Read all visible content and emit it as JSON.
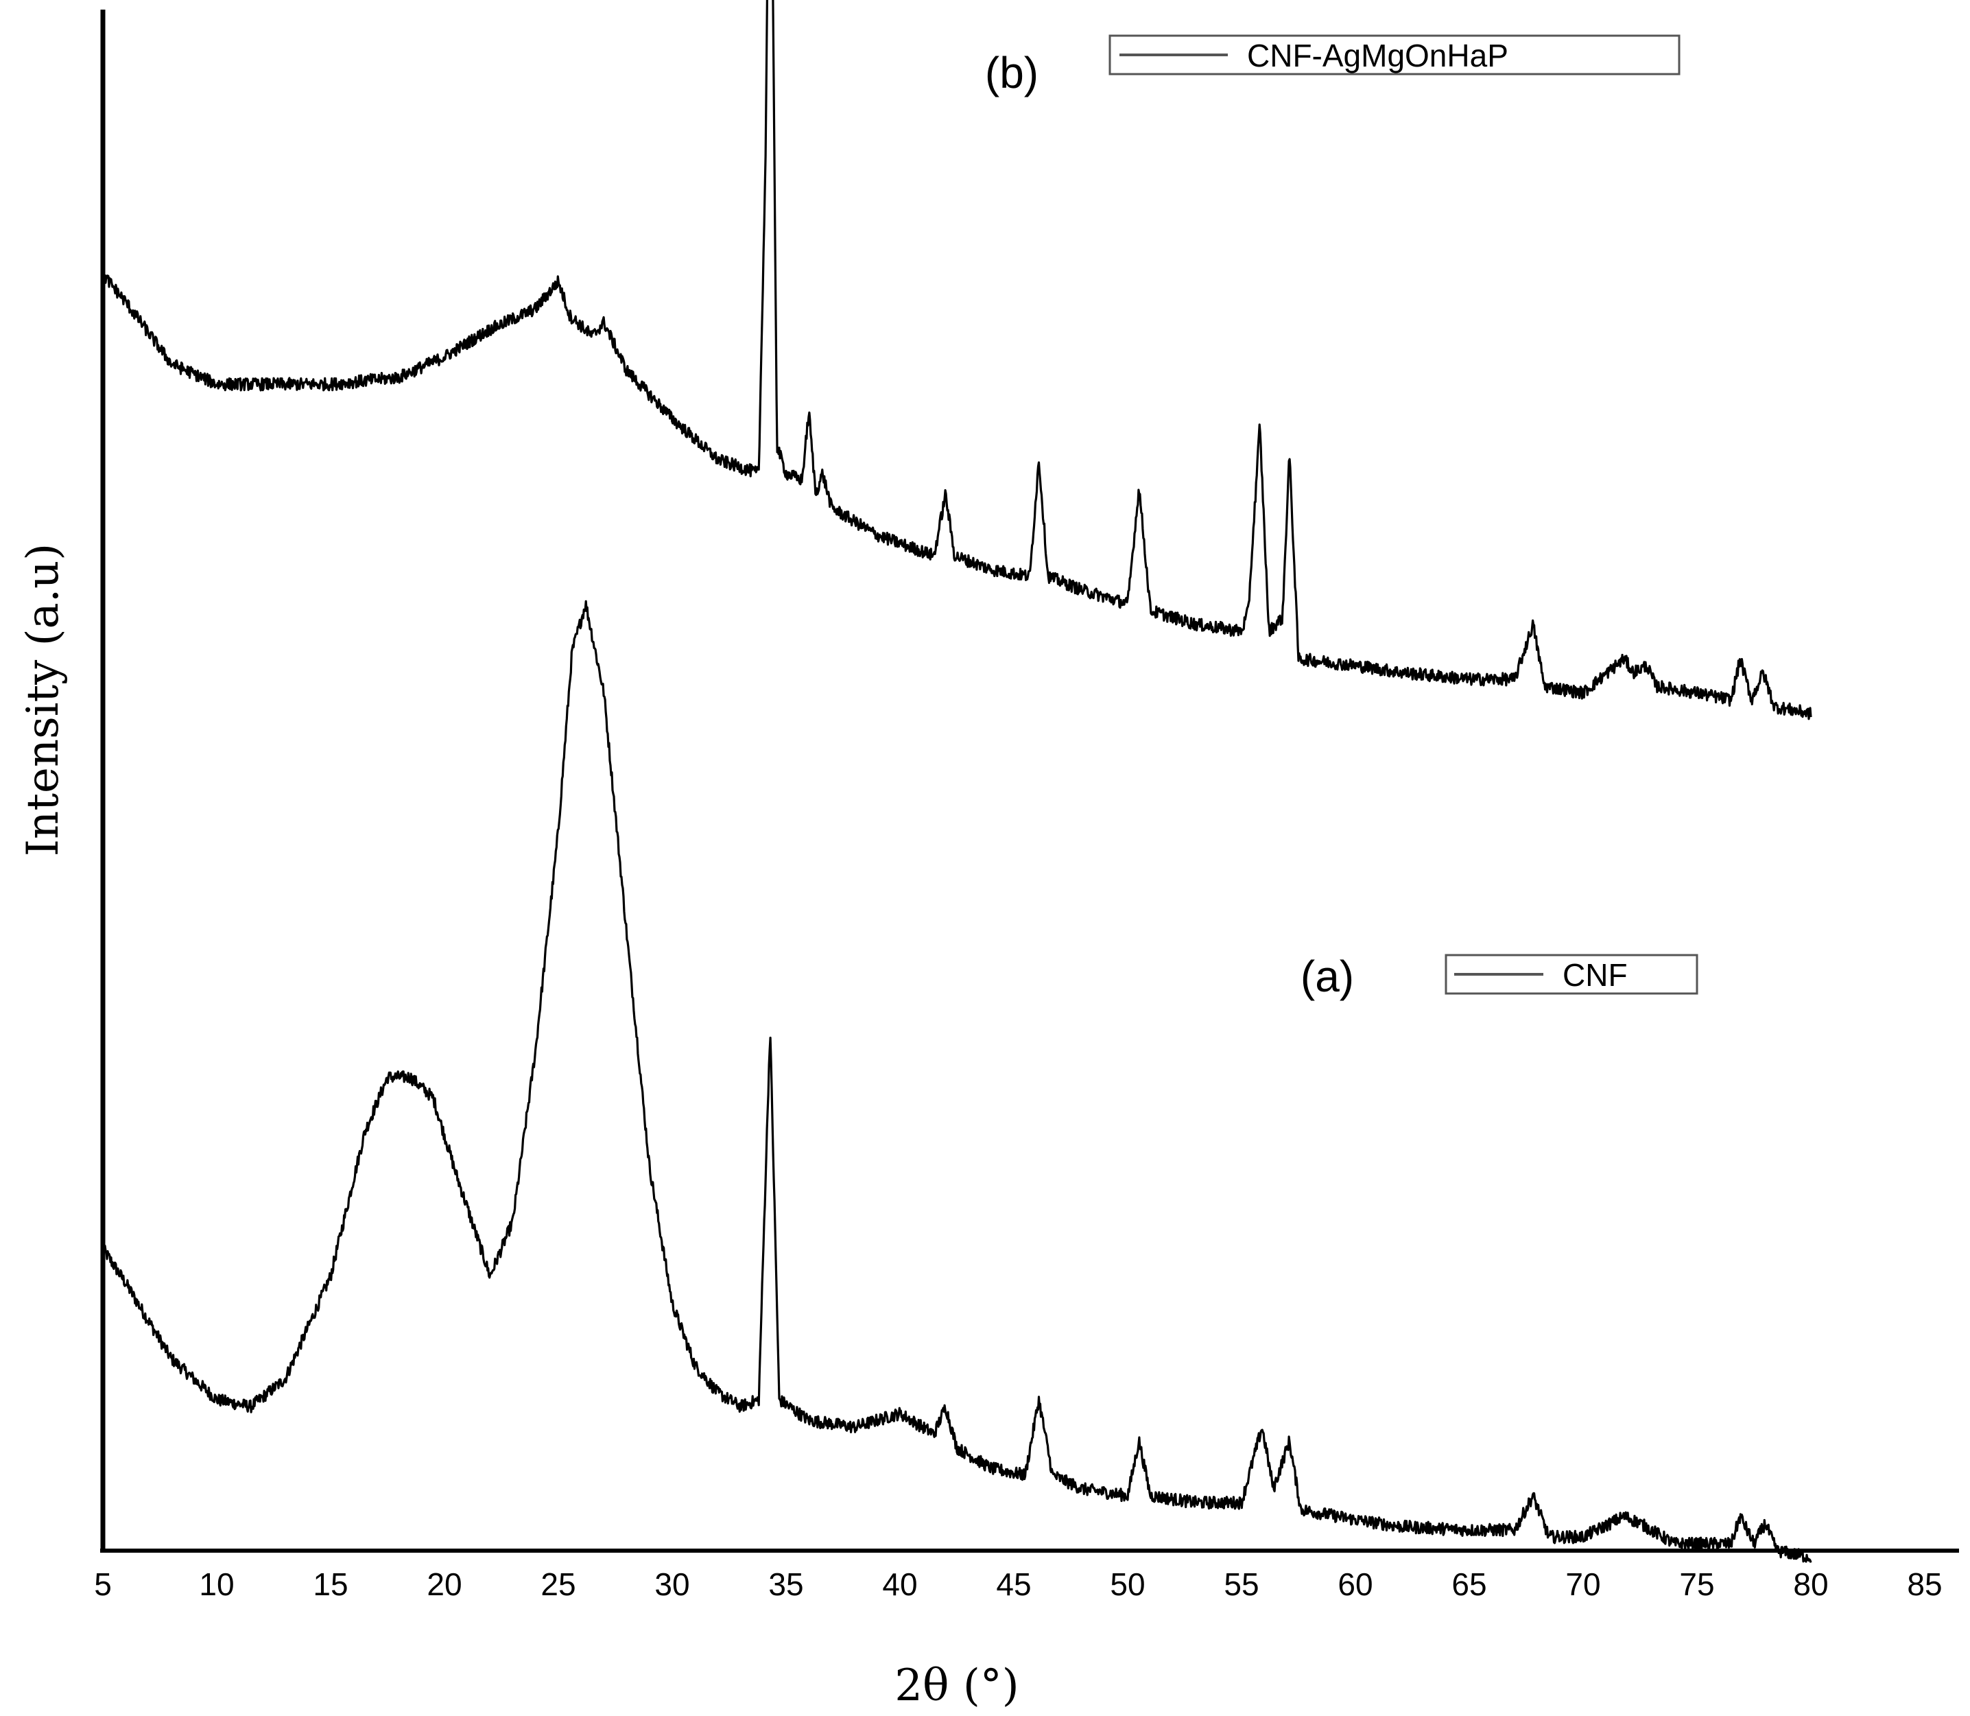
{
  "chart_data": {
    "type": "line",
    "xlabel": "2θ (°)",
    "ylabel": "Intensity (a.u)",
    "xlim": [
      5,
      85
    ],
    "x_ticks": [
      "5",
      "10",
      "15",
      "20",
      "25",
      "30",
      "35",
      "40",
      "45",
      "50",
      "55",
      "60",
      "65",
      "70",
      "75",
      "80",
      "85"
    ],
    "y_ticks": "none",
    "grid": false,
    "series": [
      {
        "name": "CNF",
        "panel_label": "(a)",
        "color": "#000000",
        "x_range": [
          5,
          80
        ],
        "points": [
          [
            5,
            0.41
          ],
          [
            6,
            0.36
          ],
          [
            8,
            0.25
          ],
          [
            10,
            0.19
          ],
          [
            11.5,
            0.18
          ],
          [
            13,
            0.22
          ],
          [
            15,
            0.37
          ],
          [
            16.5,
            0.58
          ],
          [
            17.5,
            0.66
          ],
          [
            18.5,
            0.66
          ],
          [
            19.5,
            0.63
          ],
          [
            20.5,
            0.52
          ],
          [
            22,
            0.37
          ],
          [
            23,
            0.45
          ],
          [
            24,
            0.7
          ],
          [
            25,
            1.02
          ],
          [
            25.6,
            1.28
          ],
          [
            26.2,
            1.35
          ],
          [
            27,
            1.22
          ],
          [
            28,
            0.87
          ],
          [
            29,
            0.53
          ],
          [
            30,
            0.33
          ],
          [
            31,
            0.24
          ],
          [
            32,
            0.2
          ],
          [
            33,
            0.18
          ],
          [
            33.8,
            0.19
          ],
          [
            34.3,
            0.73
          ],
          [
            34.7,
            0.19
          ],
          [
            36,
            0.16
          ],
          [
            38,
            0.15
          ],
          [
            40,
            0.17
          ],
          [
            41.5,
            0.14
          ],
          [
            42,
            0.18
          ],
          [
            42.5,
            0.12
          ],
          [
            44,
            0.09
          ],
          [
            45.5,
            0.08
          ],
          [
            46.1,
            0.19
          ],
          [
            46.7,
            0.08
          ],
          [
            48,
            0.06
          ],
          [
            50,
            0.05
          ],
          [
            50.5,
            0.13
          ],
          [
            51,
            0.05
          ],
          [
            53,
            0.04
          ],
          [
            55,
            0.04
          ],
          [
            55.9,
            0.15
          ],
          [
            56.4,
            0.06
          ],
          [
            57.1,
            0.13
          ],
          [
            57.6,
            0.03
          ],
          [
            60,
            0.015
          ],
          [
            62,
            0.005
          ],
          [
            65,
            0.0
          ],
          [
            67,
            0.0
          ],
          [
            67.8,
            0.05
          ],
          [
            68.5,
            -0.01
          ],
          [
            70,
            -0.01
          ],
          [
            71.8,
            0.02
          ],
          [
            72.5,
            0.01
          ],
          [
            74,
            -0.02
          ],
          [
            75,
            -0.02
          ],
          [
            76.5,
            -0.02
          ],
          [
            76.9,
            0.02
          ],
          [
            77.5,
            -0.02
          ],
          [
            78,
            0.01
          ],
          [
            78.5,
            -0.03
          ],
          [
            80,
            -0.04
          ]
        ]
      },
      {
        "name": "CNF-AgMgOnHaP",
        "panel_label": "(b)",
        "color": "#000000",
        "x_range": [
          5,
          80
        ],
        "points": [
          [
            5,
            1.83
          ],
          [
            6,
            1.79
          ],
          [
            8,
            1.7
          ],
          [
            10,
            1.67
          ],
          [
            15,
            1.67
          ],
          [
            18,
            1.68
          ],
          [
            20,
            1.71
          ],
          [
            22,
            1.75
          ],
          [
            24,
            1.78
          ],
          [
            25,
            1.82
          ],
          [
            25.5,
            1.77
          ],
          [
            26.5,
            1.74
          ],
          [
            27,
            1.76
          ],
          [
            28,
            1.69
          ],
          [
            30,
            1.62
          ],
          [
            32,
            1.56
          ],
          [
            33.8,
            1.54
          ],
          [
            34.1,
            2.0
          ],
          [
            34.3,
            2.68
          ],
          [
            34.6,
            1.58
          ],
          [
            35,
            1.54
          ],
          [
            35.7,
            1.53
          ],
          [
            36,
            1.63
          ],
          [
            36.3,
            1.51
          ],
          [
            36.6,
            1.54
          ],
          [
            37,
            1.49
          ],
          [
            39,
            1.45
          ],
          [
            41.5,
            1.42
          ],
          [
            42,
            1.51
          ],
          [
            42.4,
            1.42
          ],
          [
            44,
            1.4
          ],
          [
            45.7,
            1.39
          ],
          [
            46.1,
            1.56
          ],
          [
            46.5,
            1.39
          ],
          [
            48,
            1.37
          ],
          [
            50,
            1.35
          ],
          [
            50.5,
            1.52
          ],
          [
            51,
            1.34
          ],
          [
            53,
            1.32
          ],
          [
            55,
            1.31
          ],
          [
            55.3,
            1.34
          ],
          [
            55.8,
            1.61
          ],
          [
            56.2,
            1.31
          ],
          [
            56.8,
            1.33
          ],
          [
            57.1,
            1.57
          ],
          [
            57.5,
            1.27
          ],
          [
            60,
            1.26
          ],
          [
            62,
            1.25
          ],
          [
            65,
            1.24
          ],
          [
            67,
            1.24
          ],
          [
            67.8,
            1.32
          ],
          [
            68.3,
            1.23
          ],
          [
            70,
            1.22
          ],
          [
            71.8,
            1.27
          ],
          [
            72.2,
            1.25
          ],
          [
            72.8,
            1.26
          ],
          [
            73.2,
            1.23
          ],
          [
            75,
            1.22
          ],
          [
            76.5,
            1.21
          ],
          [
            76.9,
            1.27
          ],
          [
            77.4,
            1.21
          ],
          [
            77.9,
            1.25
          ],
          [
            78.4,
            1.2
          ],
          [
            80,
            1.19
          ]
        ]
      }
    ],
    "legends": [
      {
        "label": "CNF-AgMgOnHaP",
        "panel_label": "(b)",
        "placement": "top-center"
      },
      {
        "label": "CNF",
        "panel_label": "(a)",
        "placement": "center-right"
      }
    ]
  }
}
